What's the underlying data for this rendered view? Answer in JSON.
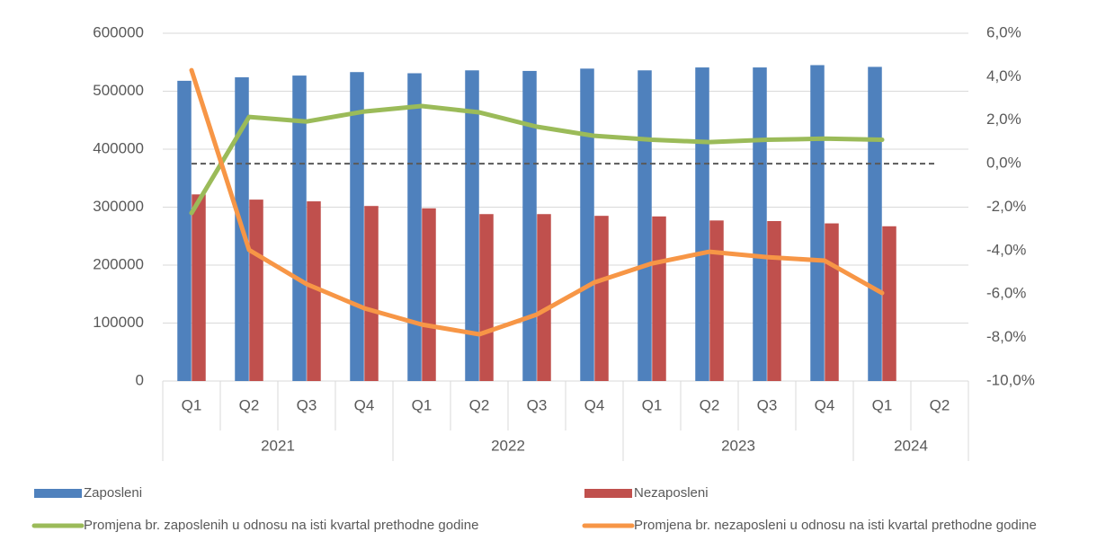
{
  "chart_data": {
    "type": "bar-line",
    "groups": [
      {
        "name": "2021",
        "categories": [
          "Q1",
          "Q2",
          "Q3",
          "Q4"
        ]
      },
      {
        "name": "2022",
        "categories": [
          "Q1",
          "Q2",
          "Q3",
          "Q4"
        ]
      },
      {
        "name": "2023",
        "categories": [
          "Q1",
          "Q2",
          "Q3",
          "Q4"
        ]
      },
      {
        "name": "2024",
        "categories": [
          "Q1",
          "Q2"
        ]
      }
    ],
    "series": [
      {
        "name": "Zaposleni",
        "type": "bar",
        "color": "#4f81bd",
        "values": [
          518000,
          524000,
          527000,
          533000,
          531000,
          536000,
          535000,
          539000,
          536000,
          541000,
          541000,
          545000,
          542000,
          null
        ]
      },
      {
        "name": "Nezaposleni",
        "type": "bar",
        "color": "#c0504d",
        "values": [
          322000,
          313000,
          310000,
          302000,
          298000,
          288000,
          288000,
          285000,
          284000,
          277000,
          276000,
          272000,
          267000,
          null
        ]
      },
      {
        "name": "Promjena br. zaposlenih u odnosu na isti kvartal prethodne godine",
        "type": "line",
        "axis": "y2",
        "color": "#9bbb59",
        "values": [
          -2.27,
          2.15,
          1.94,
          2.4,
          2.65,
          2.36,
          1.7,
          1.28,
          1.1,
          0.99,
          1.1,
          1.15,
          1.1,
          null
        ]
      },
      {
        "name": "Promjena br. nezaposleni u odnosu na isti kvartal prethodne godine",
        "type": "line",
        "axis": "y2",
        "color": "#f79646",
        "values": [
          4.3,
          -3.97,
          -5.54,
          -6.65,
          -7.4,
          -7.85,
          -6.94,
          -5.46,
          -4.59,
          -4.05,
          -4.3,
          -4.46,
          -5.95,
          null
        ]
      }
    ],
    "ylim": [
      0,
      600000
    ],
    "yticks": [
      0,
      100000,
      200000,
      300000,
      400000,
      500000,
      600000
    ],
    "y2lim": [
      -10,
      6
    ],
    "y2ticks": [
      {
        "value": -10,
        "label": "-10,0%"
      },
      {
        "value": -8,
        "label": "-8,0%"
      },
      {
        "value": -6,
        "label": "-6,0%"
      },
      {
        "value": -4,
        "label": "-4,0%"
      },
      {
        "value": -2,
        "label": "-2,0%"
      },
      {
        "value": 0,
        "label": "0,0%"
      },
      {
        "value": 2,
        "label": "2,0%"
      },
      {
        "value": 4,
        "label": "4,0%"
      },
      {
        "value": 6,
        "label": "6,0%"
      }
    ],
    "reference_line": {
      "value": 0,
      "axis": "y2",
      "color": "#595959",
      "dashed": true
    },
    "grid": true,
    "legend": "bottom"
  }
}
